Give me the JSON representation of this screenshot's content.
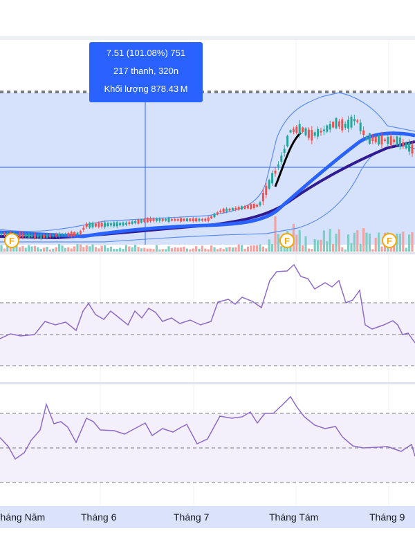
{
  "tooltip": {
    "line1": "7.51 (101.08%) 751",
    "line2": "217 thanh, 320n",
    "line3": "Khối lượng 878.43 M"
  },
  "time_axis": {
    "labels": [
      "Tháng Năm",
      "Tháng 6",
      "Tháng 7",
      "Tháng Tám",
      "Tháng 9"
    ]
  },
  "event_markers": {
    "label": "F"
  },
  "colors": {
    "up": "#26a69a",
    "down": "#ef5350",
    "price_band_fill": "#d6e2fc",
    "ma_fast": "#2962ff",
    "ma_slow": "#311b92",
    "osc_line": "#8e6ac8",
    "osc_fill": "#f3effb"
  },
  "chart_data": {
    "type": "candlestick",
    "x_categories": [
      "Tháng Năm",
      "Tháng 6",
      "Tháng 7",
      "Tháng Tám",
      "Tháng 9"
    ],
    "legend": "none",
    "grid": true
  }
}
